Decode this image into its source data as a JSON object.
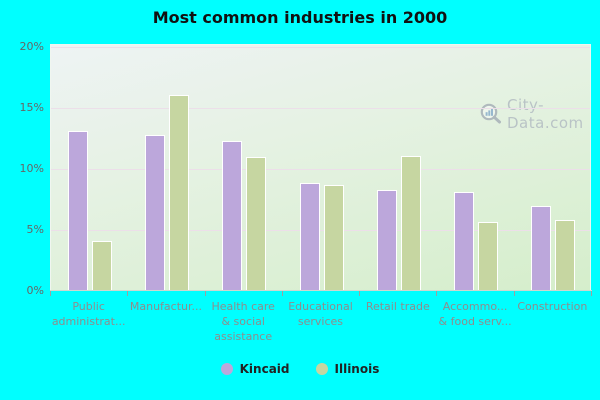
{
  "title": "Most common industries in 2000",
  "watermark": "City-Data.com",
  "colors": {
    "page_background": "#00ffff",
    "kincaid": "#bca7db",
    "illinois": "#c6d6a1",
    "bar_border": "#ffffff",
    "gridline": "#ecdfe9",
    "y_axis_text": "#666666",
    "category_text": "#8d8d8d",
    "watermark_text": "#b5bfc4",
    "title_text": "#111111"
  },
  "chart_data": {
    "type": "bar",
    "title": "Most common industries in 2000",
    "categories": [
      "Public\nadministrat...",
      "Manufactur...",
      "Health care\n& social\nassistance",
      "Educational\nservices",
      "Retail trade",
      "Accommo...\n& food serv...",
      "Construction"
    ],
    "series": [
      {
        "name": "Kincaid",
        "color": "#bca7db",
        "values": [
          13.0,
          12.7,
          12.2,
          8.8,
          8.2,
          8.0,
          6.9
        ]
      },
      {
        "name": "Illinois",
        "color": "#c6d6a1",
        "values": [
          4.0,
          16.0,
          10.9,
          8.6,
          11.0,
          5.6,
          5.7
        ]
      }
    ],
    "xlabel": "",
    "ylabel": "",
    "ylim": [
      0,
      20
    ],
    "ytick_values": [
      0,
      5,
      10,
      15,
      20
    ],
    "ytick_labels": [
      "0%",
      "5%",
      "10%",
      "15%",
      "20%"
    ],
    "grid": true,
    "legend_position": "bottom"
  }
}
